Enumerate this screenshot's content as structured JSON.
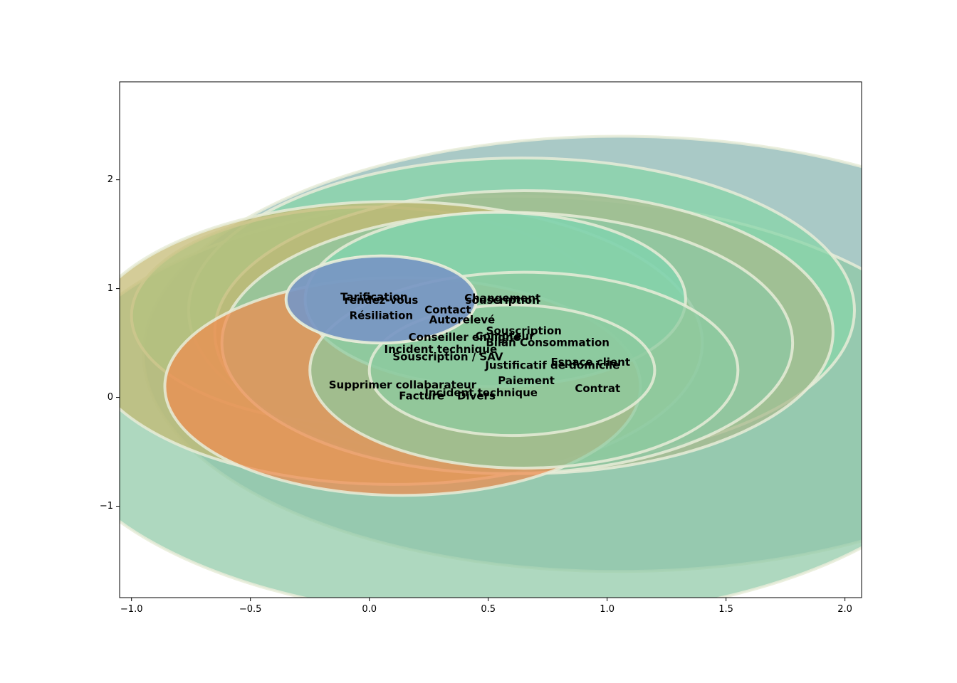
{
  "chart_data": {
    "type": "scatter",
    "title": "",
    "xlabel": "",
    "ylabel": "",
    "xlim": [
      -1.05,
      2.07
    ],
    "ylim": [
      -1.84,
      2.9
    ],
    "grid": false,
    "x_ticks": [
      -1.0,
      -0.5,
      0.0,
      0.5,
      1.0,
      1.5,
      2.0
    ],
    "y_ticks": [
      -1,
      0,
      1,
      2
    ],
    "x_tick_labels": [
      "−1.0",
      "−0.5",
      "0.0",
      "0.5",
      "1.0",
      "1.5",
      "2.0"
    ],
    "y_tick_labels": [
      "−1",
      "0",
      "1",
      "2"
    ],
    "bubbles": [
      {
        "x": 1.05,
        "y": 0.4,
        "r": 2.0,
        "color": "#88b4b0"
      },
      {
        "x": 0.6,
        "y": -0.1,
        "r": 1.95,
        "color": "#8fc9a6"
      },
      {
        "x": 0.64,
        "y": 0.8,
        "r": 1.4,
        "color": "#86d6a8"
      },
      {
        "x": 0.0,
        "y": 0.75,
        "r": 1.0,
        "color": "#88d9a6"
      },
      {
        "x": 0.65,
        "y": 0.6,
        "r": 1.3,
        "color": "#a8b88c"
      },
      {
        "x": 0.1,
        "y": 0.5,
        "r": 1.3,
        "color": "#c4b870"
      },
      {
        "x": 0.58,
        "y": 0.5,
        "r": 1.2,
        "color": "#8cc8a4"
      },
      {
        "x": 0.14,
        "y": 0.1,
        "r": 1.0,
        "color": "#f08a4e"
      },
      {
        "x": 0.53,
        "y": 0.9,
        "r": 0.8,
        "color": "#7ed6b0"
      },
      {
        "x": 0.65,
        "y": 0.25,
        "r": 0.9,
        "color": "#8ccaa0"
      },
      {
        "x": 0.6,
        "y": 0.25,
        "r": 0.6,
        "color": "#8ccaa0"
      },
      {
        "x": 0.05,
        "y": 0.9,
        "r": 0.4,
        "color": "#9b59b6"
      },
      {
        "x": 0.05,
        "y": 0.9,
        "r": 0.4,
        "color": "#6fa8c8"
      }
    ],
    "points": [
      {
        "label": "Tarification",
        "x": 0.02,
        "y": 0.92
      },
      {
        "label": "rendez-vous",
        "x": 0.05,
        "y": 0.89
      },
      {
        "label": "Résiliation",
        "x": 0.05,
        "y": 0.75
      },
      {
        "label": "Changement",
        "x": 0.56,
        "y": 0.91
      },
      {
        "label": "souscription",
        "x": 0.56,
        "y": 0.89
      },
      {
        "label": "Contact",
        "x": 0.33,
        "y": 0.8
      },
      {
        "label": "Autorelevé",
        "x": 0.39,
        "y": 0.71
      },
      {
        "label": "Souscription",
        "x": 0.65,
        "y": 0.61
      },
      {
        "label": "Conseiller en ligne",
        "x": 0.4,
        "y": 0.55
      },
      {
        "label": "Compteur",
        "x": 0.57,
        "y": 0.56
      },
      {
        "label": "Bilan Consommation",
        "x": 0.75,
        "y": 0.5
      },
      {
        "label": "Incident technique",
        "x": 0.3,
        "y": 0.44
      },
      {
        "label": "Souscription / SAV",
        "x": 0.33,
        "y": 0.37
      },
      {
        "label": "Espace client",
        "x": 0.93,
        "y": 0.32
      },
      {
        "label": "Justificatif de domicile",
        "x": 0.77,
        "y": 0.29
      },
      {
        "label": "Paiement",
        "x": 0.66,
        "y": 0.15
      },
      {
        "label": "Contrat",
        "x": 0.96,
        "y": 0.08
      },
      {
        "label": "Supprimer collabarateur",
        "x": 0.14,
        "y": 0.11
      },
      {
        "label": "Incident technique",
        "x": 0.47,
        "y": 0.04
      },
      {
        "label": "Facture",
        "x": 0.22,
        "y": 0.01
      },
      {
        "label": "Divers",
        "x": 0.45,
        "y": 0.01
      }
    ]
  }
}
